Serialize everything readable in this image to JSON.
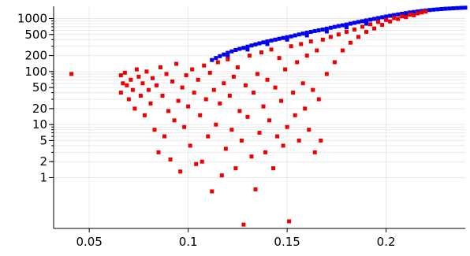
{
  "chart_data": {
    "type": "scatter",
    "title": "",
    "xlabel": "",
    "ylabel": "",
    "x_scale": "linear",
    "y_scale": "log",
    "xlim": [
      0.032,
      0.24
    ],
    "ylim": [
      0.11,
      1700
    ],
    "x_ticks": [
      0.05,
      0.1,
      0.15,
      0.2
    ],
    "x_tick_labels": [
      "0.05",
      "0.1",
      "0.15",
      "0.2"
    ],
    "y_ticks": [
      1,
      2,
      5,
      10,
      20,
      50,
      100,
      200,
      500,
      1000
    ],
    "y_tick_labels": [
      "1",
      "2",
      "5",
      "10",
      "20",
      "50",
      "100",
      "200",
      "500",
      "1000"
    ],
    "grid": true,
    "legend": "none",
    "series": [
      {
        "color": "#0000ee",
        "marker": "square",
        "note": "upper band",
        "points": [
          [
            0.112,
            165
          ],
          [
            0.114,
            180
          ],
          [
            0.116,
            195
          ],
          [
            0.118,
            210
          ],
          [
            0.12,
            225
          ],
          [
            0.122,
            240
          ],
          [
            0.124,
            255
          ],
          [
            0.126,
            268
          ],
          [
            0.128,
            280
          ],
          [
            0.13,
            295
          ],
          [
            0.132,
            310
          ],
          [
            0.134,
            325
          ],
          [
            0.136,
            340
          ],
          [
            0.138,
            355
          ],
          [
            0.14,
            370
          ],
          [
            0.142,
            385
          ],
          [
            0.144,
            400
          ],
          [
            0.146,
            415
          ],
          [
            0.148,
            430
          ],
          [
            0.15,
            445
          ],
          [
            0.152,
            460
          ],
          [
            0.154,
            480
          ],
          [
            0.156,
            500
          ],
          [
            0.158,
            520
          ],
          [
            0.16,
            540
          ],
          [
            0.162,
            560
          ],
          [
            0.164,
            580
          ],
          [
            0.166,
            600
          ],
          [
            0.168,
            620
          ],
          [
            0.17,
            645
          ],
          [
            0.172,
            670
          ],
          [
            0.174,
            695
          ],
          [
            0.176,
            720
          ],
          [
            0.178,
            745
          ],
          [
            0.18,
            770
          ],
          [
            0.182,
            800
          ],
          [
            0.184,
            830
          ],
          [
            0.186,
            860
          ],
          [
            0.188,
            890
          ],
          [
            0.19,
            920
          ],
          [
            0.192,
            950
          ],
          [
            0.194,
            985
          ],
          [
            0.196,
            1020
          ],
          [
            0.198,
            1055
          ],
          [
            0.2,
            1090
          ],
          [
            0.202,
            1125
          ],
          [
            0.204,
            1160
          ],
          [
            0.206,
            1195
          ],
          [
            0.208,
            1230
          ],
          [
            0.21,
            1265
          ],
          [
            0.212,
            1300
          ],
          [
            0.214,
            1330
          ],
          [
            0.216,
            1360
          ],
          [
            0.218,
            1390
          ],
          [
            0.22,
            1420
          ],
          [
            0.222,
            1445
          ],
          [
            0.224,
            1470
          ],
          [
            0.226,
            1490
          ],
          [
            0.228,
            1510
          ],
          [
            0.23,
            1530
          ],
          [
            0.232,
            1545
          ],
          [
            0.234,
            1560
          ],
          [
            0.236,
            1575
          ],
          [
            0.238,
            1590
          ],
          [
            0.24,
            1600
          ],
          [
            0.12,
            190
          ],
          [
            0.13,
            260
          ],
          [
            0.14,
            330
          ],
          [
            0.15,
            400
          ],
          [
            0.16,
            480
          ],
          [
            0.17,
            570
          ],
          [
            0.18,
            680
          ],
          [
            0.19,
            800
          ],
          [
            0.2,
            950
          ],
          [
            0.21,
            1100
          ]
        ]
      },
      {
        "color": "#ee0000",
        "marker": "square",
        "note": "lower scattered cloud",
        "points": [
          [
            0.041,
            90
          ],
          [
            0.066,
            85
          ],
          [
            0.066,
            40
          ],
          [
            0.067,
            60
          ],
          [
            0.068,
            95
          ],
          [
            0.069,
            55
          ],
          [
            0.07,
            30
          ],
          [
            0.071,
            70
          ],
          [
            0.072,
            45
          ],
          [
            0.073,
            20
          ],
          [
            0.074,
            110
          ],
          [
            0.075,
            80
          ],
          [
            0.076,
            35
          ],
          [
            0.077,
            60
          ],
          [
            0.078,
            15
          ],
          [
            0.079,
            100
          ],
          [
            0.08,
            45
          ],
          [
            0.081,
            25
          ],
          [
            0.082,
            75
          ],
          [
            0.083,
            8
          ],
          [
            0.084,
            55
          ],
          [
            0.085,
            3
          ],
          [
            0.086,
            120
          ],
          [
            0.087,
            35
          ],
          [
            0.088,
            6
          ],
          [
            0.089,
            90
          ],
          [
            0.09,
            18
          ],
          [
            0.091,
            2.2
          ],
          [
            0.092,
            65
          ],
          [
            0.093,
            12
          ],
          [
            0.094,
            140
          ],
          [
            0.095,
            28
          ],
          [
            0.096,
            1.3
          ],
          [
            0.097,
            50
          ],
          [
            0.098,
            9
          ],
          [
            0.099,
            85
          ],
          [
            0.1,
            22
          ],
          [
            0.101,
            4
          ],
          [
            0.102,
            110
          ],
          [
            0.103,
            40
          ],
          [
            0.104,
            1.8
          ],
          [
            0.105,
            70
          ],
          [
            0.106,
            15
          ],
          [
            0.107,
            2
          ],
          [
            0.108,
            130
          ],
          [
            0.109,
            30
          ],
          [
            0.11,
            6
          ],
          [
            0.111,
            95
          ],
          [
            0.112,
            0.55
          ],
          [
            0.113,
            45
          ],
          [
            0.114,
            10
          ],
          [
            0.115,
            150
          ],
          [
            0.116,
            25
          ],
          [
            0.117,
            1.1
          ],
          [
            0.118,
            60
          ],
          [
            0.119,
            3.5
          ],
          [
            0.12,
            170
          ],
          [
            0.121,
            35
          ],
          [
            0.122,
            8
          ],
          [
            0.123,
            80
          ],
          [
            0.124,
            1.5
          ],
          [
            0.125,
            120
          ],
          [
            0.126,
            18
          ],
          [
            0.127,
            5
          ],
          [
            0.128,
            0.13
          ],
          [
            0.129,
            55
          ],
          [
            0.13,
            14
          ],
          [
            0.131,
            200
          ],
          [
            0.132,
            2.5
          ],
          [
            0.133,
            40
          ],
          [
            0.134,
            0.6
          ],
          [
            0.135,
            90
          ],
          [
            0.136,
            7
          ],
          [
            0.137,
            230
          ],
          [
            0.138,
            22
          ],
          [
            0.139,
            3
          ],
          [
            0.14,
            70
          ],
          [
            0.141,
            12
          ],
          [
            0.142,
            260
          ],
          [
            0.143,
            1.5
          ],
          [
            0.144,
            50
          ],
          [
            0.145,
            6
          ],
          [
            0.146,
            180
          ],
          [
            0.147,
            28
          ],
          [
            0.148,
            4
          ],
          [
            0.149,
            110
          ],
          [
            0.15,
            9
          ],
          [
            0.151,
            0.15
          ],
          [
            0.152,
            300
          ],
          [
            0.153,
            40
          ],
          [
            0.154,
            15
          ],
          [
            0.155,
            150
          ],
          [
            0.156,
            5
          ],
          [
            0.157,
            330
          ],
          [
            0.158,
            60
          ],
          [
            0.159,
            20
          ],
          [
            0.16,
            200
          ],
          [
            0.161,
            8
          ],
          [
            0.162,
            370
          ],
          [
            0.163,
            45
          ],
          [
            0.164,
            3
          ],
          [
            0.165,
            250
          ],
          [
            0.166,
            30
          ],
          [
            0.167,
            5
          ],
          [
            0.168,
            400
          ],
          [
            0.17,
            90
          ],
          [
            0.172,
            450
          ],
          [
            0.174,
            150
          ],
          [
            0.176,
            500
          ],
          [
            0.178,
            250
          ],
          [
            0.18,
            560
          ],
          [
            0.182,
            350
          ],
          [
            0.184,
            620
          ],
          [
            0.186,
            450
          ],
          [
            0.188,
            700
          ],
          [
            0.19,
            560
          ],
          [
            0.192,
            780
          ],
          [
            0.194,
            650
          ],
          [
            0.196,
            860
          ],
          [
            0.198,
            760
          ],
          [
            0.2,
            940
          ],
          [
            0.202,
            880
          ],
          [
            0.204,
            1020
          ],
          [
            0.206,
            980
          ],
          [
            0.208,
            1100
          ],
          [
            0.21,
            1060
          ],
          [
            0.212,
            1180
          ],
          [
            0.214,
            1150
          ],
          [
            0.216,
            1250
          ],
          [
            0.218,
            1300
          ],
          [
            0.22,
            1350
          ]
        ]
      }
    ]
  }
}
